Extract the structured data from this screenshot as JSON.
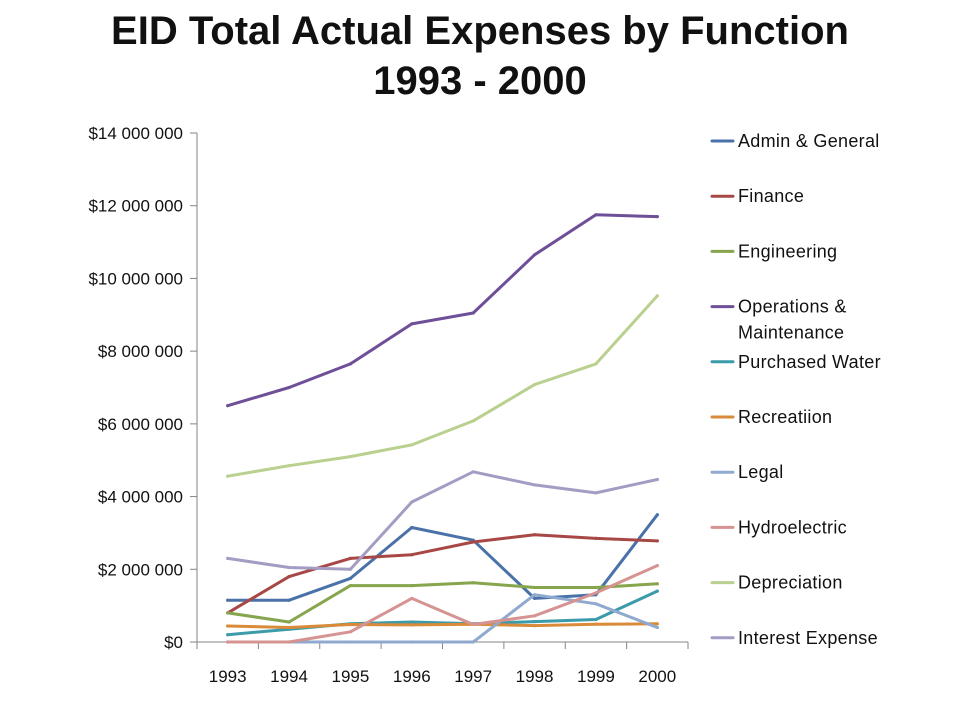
{
  "chart_data": {
    "type": "line",
    "title_lines": [
      "EID Total Actual Expenses by Function",
      "1993 - 2000"
    ],
    "xlabel": "",
    "ylabel": "",
    "categories": [
      "1993",
      "1994",
      "1995",
      "1996",
      "1997",
      "1998",
      "1999",
      "2000"
    ],
    "ylim": [
      0,
      14000000
    ],
    "y_ticks": [
      {
        "value": 0,
        "label": "$0"
      },
      {
        "value": 2000000,
        "label": "$2 000 000"
      },
      {
        "value": 4000000,
        "label": "$4 000 000"
      },
      {
        "value": 6000000,
        "label": "$6 000 000"
      },
      {
        "value": 8000000,
        "label": "$8 000 000"
      },
      {
        "value": 10000000,
        "label": "$10 000 000"
      },
      {
        "value": 12000000,
        "label": "$12 000 000"
      },
      {
        "value": 14000000,
        "label": "$14 000 000"
      }
    ],
    "grid": false,
    "legend_position": "right",
    "series": [
      {
        "name": "Admin & General",
        "name_lines": [
          "Admin & General"
        ],
        "color": "#4a72a8",
        "values": [
          1150000,
          1150000,
          1750000,
          3150000,
          2800000,
          1200000,
          1300000,
          3500000
        ]
      },
      {
        "name": "Finance",
        "name_lines": [
          "Finance"
        ],
        "color": "#a74846",
        "values": [
          800000,
          1800000,
          2300000,
          2400000,
          2750000,
          2950000,
          2850000,
          2780000
        ]
      },
      {
        "name": "Engineering",
        "name_lines": [
          "Engineering"
        ],
        "color": "#86a54d",
        "values": [
          800000,
          550000,
          1550000,
          1550000,
          1630000,
          1500000,
          1500000,
          1600000
        ]
      },
      {
        "name": "Operations & Maintenance",
        "name_lines": [
          "Operations &",
          "Maintenance"
        ],
        "color": "#6f4f97",
        "values": [
          6500000,
          7000000,
          7650000,
          8750000,
          9050000,
          10650000,
          11750000,
          11700000
        ]
      },
      {
        "name": "Purchased Water",
        "name_lines": [
          "Purchased Water"
        ],
        "color": "#3b9ba9",
        "values": [
          200000,
          350000,
          500000,
          550000,
          500000,
          560000,
          620000,
          1400000
        ]
      },
      {
        "name": "Recreatiion",
        "name_lines": [
          "Recreatiion"
        ],
        "color": "#d98b3a",
        "values": [
          440000,
          400000,
          480000,
          470000,
          490000,
          450000,
          490000,
          500000
        ]
      },
      {
        "name": "Legal",
        "name_lines": [
          "Legal"
        ],
        "color": "#8fa9cf",
        "values": [
          0,
          0,
          0,
          0,
          0,
          1300000,
          1050000,
          400000
        ]
      },
      {
        "name": "Hydroelectric",
        "name_lines": [
          "Hydroelectric"
        ],
        "color": "#d59391",
        "values": [
          0,
          0,
          280000,
          1200000,
          480000,
          720000,
          1350000,
          2100000
        ]
      },
      {
        "name": "Depreciation",
        "name_lines": [
          "Depreciation"
        ],
        "color": "#b9d08f",
        "values": [
          4560000,
          4850000,
          5100000,
          5420000,
          6080000,
          7080000,
          7650000,
          9520000
        ]
      },
      {
        "name": "Interest Expense",
        "name_lines": [
          "Interest Expense"
        ],
        "color": "#a59cc4",
        "values": [
          2300000,
          2050000,
          2000000,
          3850000,
          4680000,
          4320000,
          4100000,
          4470000
        ]
      }
    ]
  }
}
